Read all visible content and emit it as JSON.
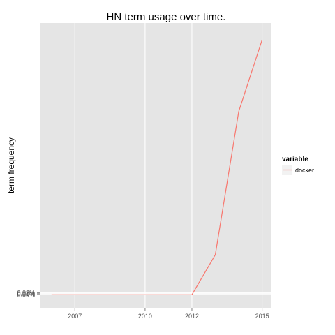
{
  "chart_data": {
    "type": "line",
    "title": "HN term usage over time.",
    "xlabel": "",
    "ylabel": "term frequency",
    "x_ticks": [
      "2007",
      "2010",
      "2012",
      "2015"
    ],
    "y_ticks": [
      "0.00%",
      "0.01%",
      "0.02%"
    ],
    "xlim": [
      2005.5,
      2015.4
    ],
    "ylim": [
      -0.0014,
      0.0292
    ],
    "grid": true,
    "legend_position": "right",
    "legend_title": "variable",
    "series": [
      {
        "name": "docker",
        "color": "#f8766d",
        "x": [
          2006.0,
          2007.0,
          2008.0,
          2009.0,
          2010.0,
          2011.0,
          2012.0,
          2013.0,
          2014.0,
          2015.0
        ],
        "y": [
          0.0,
          0.0,
          0.0,
          0.0,
          0.0,
          0.0,
          0.0,
          0.0043,
          0.0197,
          0.0274
        ]
      }
    ]
  }
}
